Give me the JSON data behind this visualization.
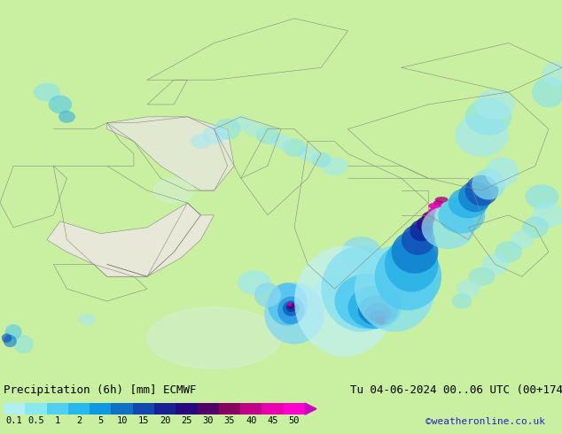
{
  "title_left": "Precipitation (6h) [mm] ECMWF",
  "title_right": "Tu 04-06-2024 00..06 UTC (00+174)",
  "credit": "©weatheronline.co.uk",
  "colorbar_tick_labels": [
    "0.1",
    "0.5",
    "1",
    "2",
    "5",
    "10",
    "15",
    "20",
    "25",
    "30",
    "35",
    "40",
    "45",
    "50"
  ],
  "colorbar_colors": [
    "#b0f0f0",
    "#88e8f0",
    "#50d0f0",
    "#28b8f0",
    "#1098e0",
    "#1070c8",
    "#1048b0",
    "#182098",
    "#280880",
    "#500068",
    "#880060",
    "#c00088",
    "#e800b0",
    "#ff00d0"
  ],
  "land_green": "#c8f0a0",
  "land_beige": "#e8e8d8",
  "ocean_color": "#ddeeff",
  "border_color": "#888888",
  "bottom_bg": "#ffffff",
  "title_fontsize": 9,
  "tick_fontsize": 7.5,
  "credit_color": "#2222cc",
  "map_extent": [
    28,
    112,
    -5,
    57
  ],
  "precip_blobs": [
    {
      "lon": 72.0,
      "lat": 6.0,
      "wlon": 9.0,
      "wlat": 10.0,
      "color": "#88d8f0",
      "alpha": 0.85
    },
    {
      "lon": 71.0,
      "lat": 7.5,
      "wlon": 6.0,
      "wlat": 7.0,
      "color": "#50c0f0",
      "alpha": 0.85
    },
    {
      "lon": 71.5,
      "lat": 6.5,
      "wlon": 4.0,
      "wlat": 4.5,
      "color": "#2898e0",
      "alpha": 0.85
    },
    {
      "lon": 71.5,
      "lat": 6.8,
      "wlon": 2.5,
      "wlat": 2.5,
      "color": "#1060c0",
      "alpha": 0.85
    },
    {
      "lon": 71.5,
      "lat": 7.0,
      "wlon": 1.5,
      "wlat": 1.5,
      "color": "#1030a0",
      "alpha": 0.85
    },
    {
      "lon": 71.5,
      "lat": 7.2,
      "wlon": 1.0,
      "wlat": 1.0,
      "color": "#480078",
      "alpha": 0.85
    },
    {
      "lon": 71.3,
      "lat": 7.5,
      "wlon": 0.7,
      "wlat": 0.7,
      "color": "#cc00a0",
      "alpha": 0.85
    },
    {
      "lon": 66.0,
      "lat": 11.0,
      "wlon": 5.0,
      "wlat": 4.0,
      "color": "#a0e8f0",
      "alpha": 0.75
    },
    {
      "lon": 68.0,
      "lat": 9.0,
      "wlon": 4.0,
      "wlat": 4.0,
      "color": "#88d8f0",
      "alpha": 0.75
    },
    {
      "lon": 77.0,
      "lat": 10.0,
      "wlon": 4.0,
      "wlat": 3.5,
      "color": "#a0e8f0",
      "alpha": 0.7
    },
    {
      "lon": 78.0,
      "lat": 11.0,
      "wlon": 3.0,
      "wlat": 2.5,
      "color": "#88d8f0",
      "alpha": 0.7
    },
    {
      "lon": 80.0,
      "lat": 14.0,
      "wlon": 5.0,
      "wlat": 4.0,
      "color": "#a0e8f0",
      "alpha": 0.65
    },
    {
      "lon": 82.0,
      "lat": 16.0,
      "wlon": 6.0,
      "wlat": 5.0,
      "color": "#88d8f0",
      "alpha": 0.7
    },
    {
      "lon": 79.5,
      "lat": 8.0,
      "wlon": 15.0,
      "wlat": 18.0,
      "color": "#c0f0f8",
      "alpha": 0.7
    },
    {
      "lon": 82.0,
      "lat": 10.0,
      "wlon": 12.0,
      "wlat": 14.0,
      "color": "#88e0f0",
      "alpha": 0.8
    },
    {
      "lon": 83.0,
      "lat": 8.0,
      "wlon": 10.0,
      "wlat": 9.0,
      "color": "#50c8f0",
      "alpha": 0.85
    },
    {
      "lon": 84.0,
      "lat": 7.0,
      "wlon": 8.0,
      "wlat": 7.0,
      "color": "#28b0e8",
      "alpha": 0.85
    },
    {
      "lon": 84.5,
      "lat": 6.5,
      "wlon": 6.0,
      "wlat": 5.0,
      "color": "#1080d0",
      "alpha": 0.85
    },
    {
      "lon": 84.5,
      "lat": 6.0,
      "wlon": 4.0,
      "wlat": 3.5,
      "color": "#1050b8",
      "alpha": 0.85
    },
    {
      "lon": 84.5,
      "lat": 5.5,
      "wlon": 2.5,
      "wlat": 2.0,
      "color": "#1028a0",
      "alpha": 0.85
    },
    {
      "lon": 84.8,
      "lat": 5.0,
      "wlon": 1.5,
      "wlat": 1.2,
      "color": "#300888",
      "alpha": 0.85
    },
    {
      "lon": 85.0,
      "lat": 4.5,
      "wlon": 1.0,
      "wlat": 0.8,
      "color": "#600068",
      "alpha": 0.85
    },
    {
      "lon": 87.0,
      "lat": 10.0,
      "wlon": 12.0,
      "wlat": 14.0,
      "color": "#88e0f0",
      "alpha": 0.8
    },
    {
      "lon": 89.0,
      "lat": 12.0,
      "wlon": 10.0,
      "wlat": 11.0,
      "color": "#50c8f0",
      "alpha": 0.85
    },
    {
      "lon": 89.5,
      "lat": 14.0,
      "wlon": 8.0,
      "wlat": 9.0,
      "color": "#28b0e8",
      "alpha": 0.85
    },
    {
      "lon": 90.0,
      "lat": 16.0,
      "wlon": 7.0,
      "wlat": 7.0,
      "color": "#1080d0",
      "alpha": 0.85
    },
    {
      "lon": 90.5,
      "lat": 18.0,
      "wlon": 5.0,
      "wlat": 5.0,
      "color": "#1050b8",
      "alpha": 0.85
    },
    {
      "lon": 91.0,
      "lat": 19.5,
      "wlon": 3.5,
      "wlat": 3.5,
      "color": "#1028a0",
      "alpha": 0.85
    },
    {
      "lon": 91.5,
      "lat": 20.5,
      "wlon": 2.5,
      "wlat": 2.5,
      "color": "#300888",
      "alpha": 0.85
    },
    {
      "lon": 92.0,
      "lat": 21.5,
      "wlon": 2.0,
      "wlat": 2.0,
      "color": "#600068",
      "alpha": 0.85
    },
    {
      "lon": 92.2,
      "lat": 22.0,
      "wlon": 1.5,
      "wlat": 1.2,
      "color": "#a00070",
      "alpha": 0.9
    },
    {
      "lon": 92.5,
      "lat": 22.5,
      "wlon": 1.2,
      "wlat": 1.0,
      "color": "#d800a0",
      "alpha": 0.95
    },
    {
      "lon": 92.8,
      "lat": 23.0,
      "wlon": 0.9,
      "wlat": 0.7,
      "color": "#ff00c8",
      "alpha": 0.95
    },
    {
      "lon": 93.0,
      "lat": 23.5,
      "wlon": 2.0,
      "wlat": 1.0,
      "color": "#e800b8",
      "alpha": 0.9
    },
    {
      "lon": 93.5,
      "lat": 24.0,
      "wlon": 1.5,
      "wlat": 0.8,
      "color": "#d000a0",
      "alpha": 0.9
    },
    {
      "lon": 94.0,
      "lat": 24.5,
      "wlon": 2.0,
      "wlat": 1.0,
      "color": "#a80080",
      "alpha": 0.8
    },
    {
      "lon": 95.0,
      "lat": 20.0,
      "wlon": 8.0,
      "wlat": 7.0,
      "color": "#88e0f0",
      "alpha": 0.75
    },
    {
      "lon": 97.0,
      "lat": 22.0,
      "wlon": 7.0,
      "wlat": 6.0,
      "color": "#50c8f0",
      "alpha": 0.8
    },
    {
      "lon": 98.0,
      "lat": 24.0,
      "wlon": 6.0,
      "wlat": 5.0,
      "color": "#28b0e8",
      "alpha": 0.8
    },
    {
      "lon": 99.0,
      "lat": 25.0,
      "wlon": 5.0,
      "wlat": 5.0,
      "color": "#1080d0",
      "alpha": 0.8
    },
    {
      "lon": 100.0,
      "lat": 26.0,
      "wlon": 5.0,
      "wlat": 5.0,
      "color": "#1050b8",
      "alpha": 0.75
    },
    {
      "lon": 101.0,
      "lat": 27.0,
      "wlon": 5.0,
      "wlat": 5.0,
      "color": "#88e0f0",
      "alpha": 0.7
    },
    {
      "lon": 103.0,
      "lat": 29.0,
      "wlon": 5.0,
      "wlat": 5.0,
      "color": "#a0e8f8",
      "alpha": 0.65
    },
    {
      "lon": 100.0,
      "lat": 35.0,
      "wlon": 8.0,
      "wlat": 7.0,
      "color": "#a0e8f8",
      "alpha": 0.65
    },
    {
      "lon": 101.0,
      "lat": 38.0,
      "wlon": 7.0,
      "wlat": 6.0,
      "color": "#88e0f0",
      "alpha": 0.6
    },
    {
      "lon": 102.0,
      "lat": 40.0,
      "wlon": 6.0,
      "wlat": 5.0,
      "color": "#a0e8f8",
      "alpha": 0.55
    },
    {
      "lon": 78.0,
      "lat": 30.0,
      "wlon": 4.0,
      "wlat": 3.0,
      "color": "#a0e8f8",
      "alpha": 0.6
    },
    {
      "lon": 76.0,
      "lat": 31.0,
      "wlon": 3.0,
      "wlat": 2.5,
      "color": "#88e0f0",
      "alpha": 0.6
    },
    {
      "lon": 74.0,
      "lat": 32.0,
      "wlon": 3.0,
      "wlat": 2.5,
      "color": "#a0e8f8",
      "alpha": 0.55
    },
    {
      "lon": 72.0,
      "lat": 33.0,
      "wlon": 3.5,
      "wlat": 3.0,
      "color": "#88e0f0",
      "alpha": 0.55
    },
    {
      "lon": 70.0,
      "lat": 34.0,
      "wlon": 3.0,
      "wlat": 2.5,
      "color": "#a0e8f8",
      "alpha": 0.55
    },
    {
      "lon": 68.0,
      "lat": 35.0,
      "wlon": 3.5,
      "wlat": 3.0,
      "color": "#88e0f0",
      "alpha": 0.55
    },
    {
      "lon": 66.0,
      "lat": 36.0,
      "wlon": 3.0,
      "wlat": 2.5,
      "color": "#a0e8f8",
      "alpha": 0.5
    },
    {
      "lon": 64.0,
      "lat": 37.0,
      "wlon": 3.0,
      "wlat": 2.5,
      "color": "#a0e8f8",
      "alpha": 0.5
    },
    {
      "lon": 62.0,
      "lat": 36.0,
      "wlon": 4.0,
      "wlat": 3.5,
      "color": "#88e0f0",
      "alpha": 0.55
    },
    {
      "lon": 60.0,
      "lat": 35.0,
      "wlon": 3.5,
      "wlat": 3.0,
      "color": "#a0e8f8",
      "alpha": 0.5
    },
    {
      "lon": 58.0,
      "lat": 34.0,
      "wlon": 3.0,
      "wlat": 2.5,
      "color": "#a0e8f8",
      "alpha": 0.5
    },
    {
      "lon": 35.0,
      "lat": 42.0,
      "wlon": 4.0,
      "wlat": 3.0,
      "color": "#88e0f0",
      "alpha": 0.6
    },
    {
      "lon": 37.0,
      "lat": 40.0,
      "wlon": 3.5,
      "wlat": 3.0,
      "color": "#50c8f0",
      "alpha": 0.6
    },
    {
      "lon": 38.0,
      "lat": 38.0,
      "wlon": 2.5,
      "wlat": 2.0,
      "color": "#28a8e8",
      "alpha": 0.55
    },
    {
      "lon": 31.5,
      "lat": 1.0,
      "wlon": 3.0,
      "wlat": 3.0,
      "color": "#88e0f0",
      "alpha": 0.55
    },
    {
      "lon": 30.0,
      "lat": 3.0,
      "wlon": 2.5,
      "wlat": 2.5,
      "color": "#50c8f0",
      "alpha": 0.6
    },
    {
      "lon": 29.5,
      "lat": 1.5,
      "wlon": 2.0,
      "wlat": 2.0,
      "color": "#1080d0",
      "alpha": 0.65
    },
    {
      "lon": 29.0,
      "lat": 2.0,
      "wlon": 1.5,
      "wlat": 1.5,
      "color": "#1050b8",
      "alpha": 0.65
    },
    {
      "lon": 41.0,
      "lat": 5.0,
      "wlon": 2.5,
      "wlat": 2.0,
      "color": "#a0e8f8",
      "alpha": 0.55
    },
    {
      "lon": 110.0,
      "lat": 42.0,
      "wlon": 5.0,
      "wlat": 5.0,
      "color": "#88e0f0",
      "alpha": 0.6
    },
    {
      "lon": 111.0,
      "lat": 45.0,
      "wlon": 4.0,
      "wlat": 4.0,
      "color": "#a0e8f8",
      "alpha": 0.55
    },
    {
      "lon": 109.0,
      "lat": 25.0,
      "wlon": 5.0,
      "wlat": 4.0,
      "color": "#88e0f0",
      "alpha": 0.65
    },
    {
      "lon": 110.0,
      "lat": 22.0,
      "wlon": 5.0,
      "wlat": 4.0,
      "color": "#a0e8f8",
      "alpha": 0.6
    },
    {
      "lon": 108.0,
      "lat": 20.0,
      "wlon": 4.0,
      "wlat": 3.5,
      "color": "#88e0f0",
      "alpha": 0.6
    },
    {
      "lon": 106.0,
      "lat": 18.0,
      "wlon": 3.5,
      "wlat": 3.0,
      "color": "#a0e8f8",
      "alpha": 0.55
    },
    {
      "lon": 104.0,
      "lat": 16.0,
      "wlon": 4.0,
      "wlat": 3.5,
      "color": "#88e0f0",
      "alpha": 0.6
    },
    {
      "lon": 102.0,
      "lat": 14.0,
      "wlon": 4.0,
      "wlat": 3.5,
      "color": "#a0e8f8",
      "alpha": 0.6
    },
    {
      "lon": 100.0,
      "lat": 12.0,
      "wlon": 4.0,
      "wlat": 3.0,
      "color": "#88e0f0",
      "alpha": 0.55
    },
    {
      "lon": 98.0,
      "lat": 10.0,
      "wlon": 3.5,
      "wlat": 3.0,
      "color": "#a0e8f8",
      "alpha": 0.55
    },
    {
      "lon": 97.0,
      "lat": 8.0,
      "wlon": 3.0,
      "wlat": 2.5,
      "color": "#88e0f0",
      "alpha": 0.55
    }
  ],
  "land_polygons": {
    "arabian_peninsula_color": "#e8e8d8",
    "iran_color": "#e0e8d0"
  }
}
